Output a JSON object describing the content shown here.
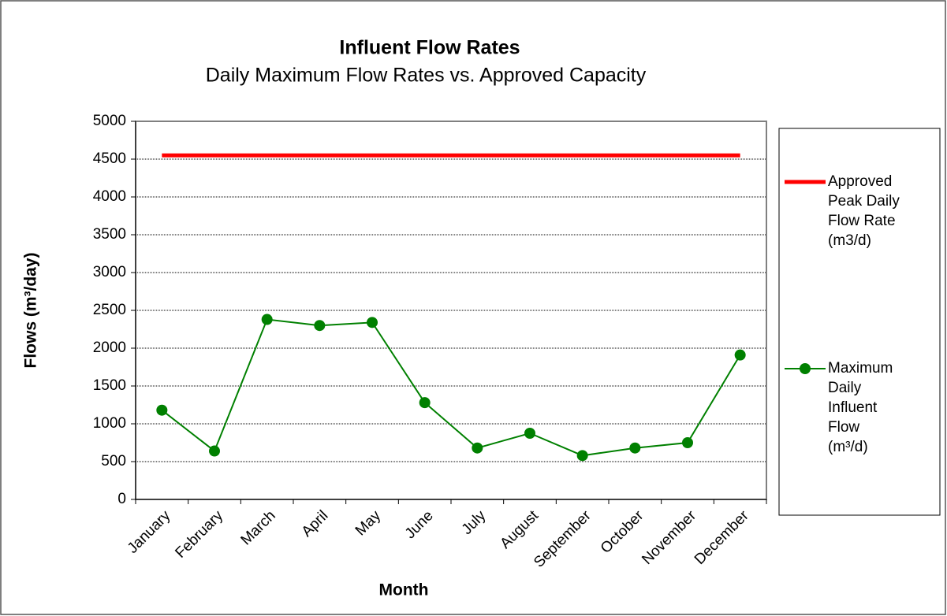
{
  "chart_data": {
    "type": "line",
    "title": "Influent Flow Rates",
    "subtitle": "Daily Maximum Flow Rates vs. Approved Capacity",
    "xlabel": "Month",
    "ylabel": "Flows (m³/day)",
    "categories": [
      "January",
      "February",
      "March",
      "April",
      "May",
      "June",
      "July",
      "August",
      "September",
      "October",
      "November",
      "December"
    ],
    "series": [
      {
        "name": "Approved Peak Daily Flow Rate (m3/d)",
        "color": "#ff0000",
        "values": [
          4550,
          4550,
          4550,
          4550,
          4550,
          4550,
          4550,
          4550,
          4550,
          4550,
          4550,
          4550
        ]
      },
      {
        "name": "Maximum Daily Influent Flow (m³/d)",
        "color": "#008000",
        "marker": "circle",
        "values": [
          1180,
          640,
          2380,
          2300,
          2340,
          1280,
          680,
          875,
          580,
          680,
          750,
          1910
        ]
      }
    ],
    "ylim": [
      0,
      5000
    ],
    "yticks": [
      0,
      500,
      1000,
      1500,
      2000,
      2500,
      3000,
      3500,
      4000,
      4500,
      5000
    ],
    "grid": true,
    "legend": "right"
  }
}
